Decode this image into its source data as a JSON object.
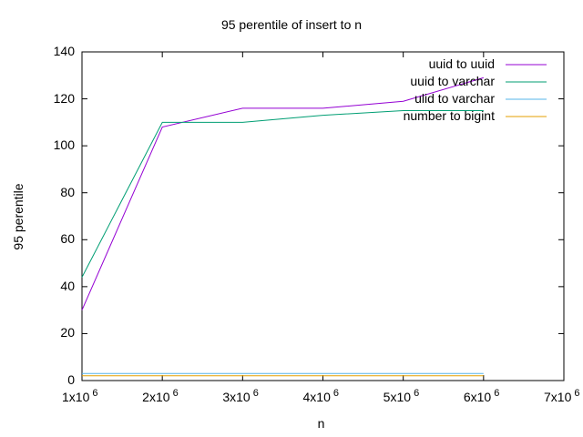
{
  "chart_data": {
    "type": "line",
    "title": "95 perentile of insert to n",
    "xlabel": "n",
    "ylabel": "95 perentile",
    "xlim": [
      1000000,
      7000000
    ],
    "ylim": [
      0,
      140
    ],
    "yticks": [
      0,
      20,
      40,
      60,
      80,
      100,
      120,
      140
    ],
    "xticks": [
      {
        "value": 1000000,
        "mantissa": "1x10",
        "exp": "6"
      },
      {
        "value": 2000000,
        "mantissa": "2x10",
        "exp": "6"
      },
      {
        "value": 3000000,
        "mantissa": "3x10",
        "exp": "6"
      },
      {
        "value": 4000000,
        "mantissa": "4x10",
        "exp": "6"
      },
      {
        "value": 5000000,
        "mantissa": "5x10",
        "exp": "6"
      },
      {
        "value": 6000000,
        "mantissa": "6x10",
        "exp": "6"
      },
      {
        "value": 7000000,
        "mantissa": "7x10",
        "exp": "6"
      }
    ],
    "x": [
      1000000,
      2000000,
      3000000,
      4000000,
      5000000,
      6000000
    ],
    "series": [
      {
        "name": "uuid to uuid",
        "color": "#9400d3",
        "values": [
          30,
          108,
          116,
          116,
          119,
          129
        ]
      },
      {
        "name": "uuid to varchar",
        "color": "#009e73",
        "values": [
          44,
          110,
          110,
          113,
          115,
          115
        ]
      },
      {
        "name": "ulid to varchar",
        "color": "#56b4e9",
        "values": [
          3,
          3,
          3,
          3,
          3,
          3
        ]
      },
      {
        "name": "number to bigint",
        "color": "#e69f00",
        "values": [
          2,
          2,
          2,
          2,
          2,
          2
        ]
      }
    ],
    "legend_position": "top-right",
    "grid": false
  }
}
